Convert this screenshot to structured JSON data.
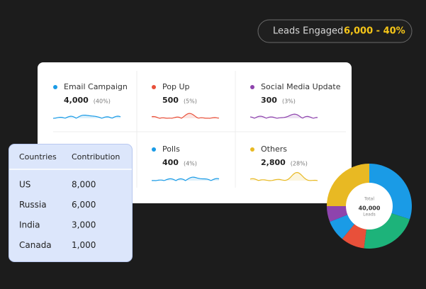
{
  "badge": {
    "label": "Leads Engaged",
    "value": "6,000 - 40%"
  },
  "channels": [
    {
      "name": "Email Campaign",
      "value": "4,000",
      "share": "(40%)",
      "color": "#1a9be6"
    },
    {
      "name": "Pop Up",
      "value": "500",
      "share": "(5%)",
      "color": "#e8503a"
    },
    {
      "name": "Social Media Update",
      "value": "300",
      "share": "(3%)",
      "color": "#8e44ad"
    },
    {
      "name": "Polls",
      "value": "400",
      "share": "(4%)",
      "color": "#1a9be6"
    },
    {
      "name": "Others",
      "value": "2,800",
      "share": "(28%)",
      "color": "#e8b923"
    }
  ],
  "table": {
    "header": [
      "Countries",
      "Contribution"
    ],
    "rows": [
      [
        "US",
        "8,000"
      ],
      [
        "Russia",
        "6,000"
      ],
      [
        "India",
        "3,000"
      ],
      [
        "Canada",
        "1,000"
      ]
    ]
  },
  "donut": {
    "center_top": "Total",
    "center_value": "40,000",
    "center_bottom": "Leads",
    "segments": [
      {
        "value": 30,
        "color": "#1a9be6"
      },
      {
        "value": 22,
        "color": "#1db37a"
      },
      {
        "value": 9,
        "color": "#e8503a"
      },
      {
        "value": 8,
        "color": "#1a9be6"
      },
      {
        "value": 6,
        "color": "#8e44ad"
      },
      {
        "value": 25,
        "color": "#e8b923"
      }
    ]
  }
}
